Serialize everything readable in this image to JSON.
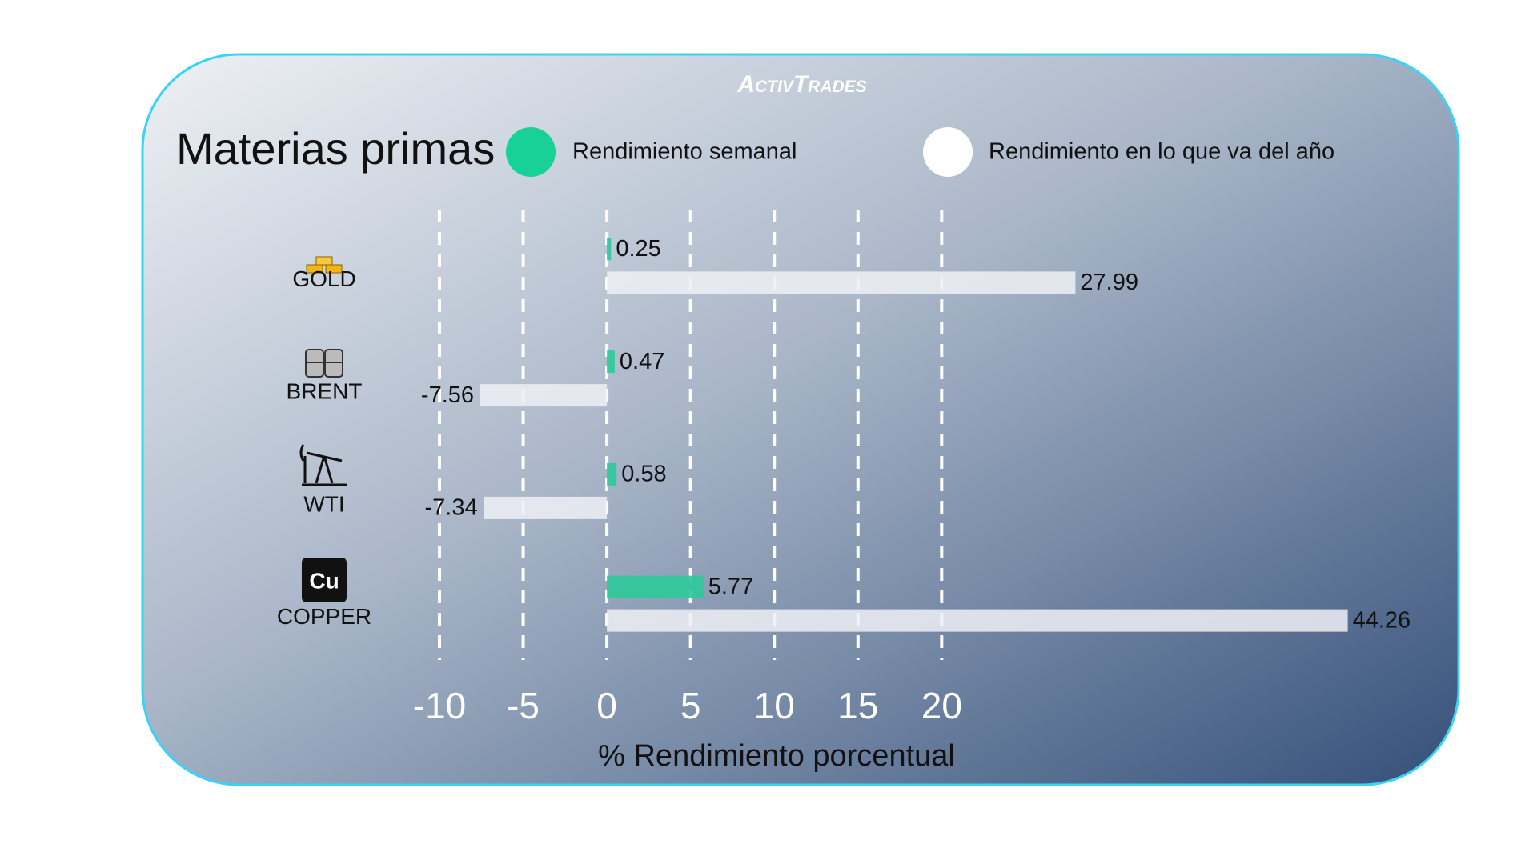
{
  "logo": "ActivTrades",
  "chart_data": {
    "type": "hbar",
    "title": "Materias primas",
    "xlabel": "% Rendimiento porcentual",
    "categories": [
      "GOLD",
      "BRENT",
      "WTI",
      "COPPER"
    ],
    "series": [
      {
        "name": "Rendimiento semanal",
        "color": "#2cc99a",
        "values": [
          0.25,
          0.47,
          0.58,
          5.77
        ]
      },
      {
        "name": "Rendimiento en lo que va del año",
        "color": "#eef0f4",
        "values": [
          27.99,
          -7.56,
          -7.34,
          44.26
        ]
      }
    ],
    "xlim": [
      -10,
      46
    ],
    "xticks": [
      -10,
      -5,
      0,
      5,
      10,
      15,
      20
    ],
    "grid": true
  }
}
